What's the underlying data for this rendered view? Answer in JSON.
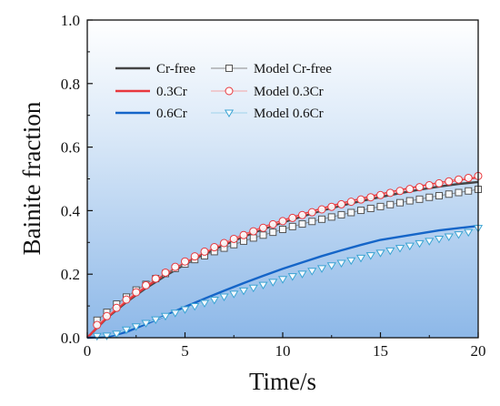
{
  "chart_data": {
    "type": "line",
    "xlabel": "Time/s",
    "ylabel": "Bainite fraction",
    "xlim": [
      0,
      20
    ],
    "ylim": [
      0,
      1.0
    ],
    "x_ticks": [
      "0",
      "5",
      "10",
      "15",
      "20"
    ],
    "y_ticks": [
      "0.0",
      "0.2",
      "0.4",
      "0.6",
      "0.8",
      "1.0"
    ],
    "background": "gradient: light blue (top) to medium blue (bottom)",
    "legend_placement": "top-left",
    "series": [
      {
        "name": "Cr-free",
        "style": "line",
        "color": "#444444",
        "x": [
          0,
          1,
          2,
          3,
          4,
          5,
          6,
          7,
          8,
          9,
          10,
          11,
          12,
          13,
          14,
          15,
          16,
          17,
          18,
          19,
          20
        ],
        "values": [
          0.0,
          0.062,
          0.112,
          0.156,
          0.195,
          0.231,
          0.263,
          0.292,
          0.318,
          0.342,
          0.363,
          0.382,
          0.4,
          0.416,
          0.43,
          0.443,
          0.455,
          0.466,
          0.476,
          0.484,
          0.49
        ]
      },
      {
        "name": "0.3Cr",
        "style": "line",
        "color": "#e8383d",
        "x": [
          0,
          1,
          2,
          3,
          4,
          5,
          6,
          7,
          8,
          9,
          10,
          11,
          12,
          13,
          14,
          15,
          16,
          17,
          18,
          19,
          20
        ],
        "values": [
          0.0,
          0.064,
          0.115,
          0.16,
          0.2,
          0.236,
          0.268,
          0.297,
          0.323,
          0.347,
          0.368,
          0.388,
          0.406,
          0.422,
          0.437,
          0.451,
          0.464,
          0.476,
          0.487,
          0.497,
          0.505
        ]
      },
      {
        "name": "0.6Cr",
        "style": "line",
        "color": "#1565c8",
        "x": [
          0,
          1,
          2,
          3,
          4,
          5,
          6,
          7,
          8,
          9,
          10,
          11,
          12,
          13,
          14,
          15,
          16,
          17,
          18,
          19,
          20
        ],
        "values": [
          0.0,
          0.002,
          0.018,
          0.043,
          0.07,
          0.097,
          0.123,
          0.148,
          0.172,
          0.195,
          0.217,
          0.237,
          0.257,
          0.275,
          0.292,
          0.308,
          0.318,
          0.328,
          0.338,
          0.345,
          0.352
        ]
      },
      {
        "name": "Model Cr-free",
        "style": "line-square",
        "color": "#888888",
        "marker_color": "#555555",
        "x": [
          0.5,
          1.0,
          1.5,
          2.0,
          2.5,
          3.0,
          3.5,
          4.0,
          4.5,
          5.0,
          5.5,
          6.0,
          6.5,
          7.0,
          7.5,
          8.0,
          8.5,
          9.0,
          9.5,
          10.0,
          10.5,
          11.0,
          11.5,
          12.0,
          12.5,
          13.0,
          13.5,
          14.0,
          14.5,
          15.0,
          15.5,
          16.0,
          16.5,
          17.0,
          17.5,
          18.0,
          18.5,
          19.0,
          19.5,
          20.0
        ],
        "values": [
          0.055,
          0.08,
          0.106,
          0.128,
          0.15,
          0.168,
          0.186,
          0.202,
          0.218,
          0.232,
          0.246,
          0.258,
          0.271,
          0.282,
          0.293,
          0.304,
          0.314,
          0.323,
          0.332,
          0.341,
          0.35,
          0.358,
          0.366,
          0.373,
          0.38,
          0.387,
          0.394,
          0.401,
          0.407,
          0.413,
          0.419,
          0.425,
          0.431,
          0.436,
          0.442,
          0.447,
          0.452,
          0.457,
          0.462,
          0.467
        ]
      },
      {
        "name": "Model 0.3Cr",
        "style": "line-circle",
        "color": "#f4a3a3",
        "marker_color": "#e8383d",
        "x": [
          0.5,
          1.0,
          1.5,
          2.0,
          2.5,
          3.0,
          3.5,
          4.0,
          4.5,
          5.0,
          5.5,
          6.0,
          6.5,
          7.0,
          7.5,
          8.0,
          8.5,
          9.0,
          9.5,
          10.0,
          10.5,
          11.0,
          11.5,
          12.0,
          12.5,
          13.0,
          13.5,
          14.0,
          14.5,
          15.0,
          15.5,
          16.0,
          16.5,
          17.0,
          17.5,
          18.0,
          18.5,
          19.0,
          19.5,
          20.0
        ],
        "values": [
          0.04,
          0.068,
          0.094,
          0.12,
          0.143,
          0.165,
          0.186,
          0.205,
          0.223,
          0.24,
          0.256,
          0.271,
          0.285,
          0.298,
          0.311,
          0.323,
          0.335,
          0.346,
          0.357,
          0.367,
          0.377,
          0.386,
          0.395,
          0.404,
          0.412,
          0.42,
          0.428,
          0.435,
          0.442,
          0.449,
          0.456,
          0.462,
          0.468,
          0.474,
          0.48,
          0.486,
          0.492,
          0.498,
          0.503,
          0.509
        ]
      },
      {
        "name": "Model 0.6Cr",
        "style": "line-triangle",
        "color": "#9fd4ea",
        "marker_color": "#3aa3d3",
        "x": [
          0.5,
          1.0,
          1.5,
          2.0,
          2.5,
          3.0,
          3.5,
          4.0,
          4.5,
          5.0,
          5.5,
          6.0,
          6.5,
          7.0,
          7.5,
          8.0,
          8.5,
          9.0,
          9.5,
          10.0,
          10.5,
          11.0,
          11.5,
          12.0,
          12.5,
          13.0,
          13.5,
          14.0,
          14.5,
          15.0,
          15.5,
          16.0,
          16.5,
          17.0,
          17.5,
          18.0,
          18.5,
          19.0,
          19.5,
          20.0
        ],
        "values": [
          0.005,
          0.006,
          0.012,
          0.025,
          0.035,
          0.046,
          0.057,
          0.068,
          0.078,
          0.089,
          0.099,
          0.109,
          0.119,
          0.129,
          0.138,
          0.148,
          0.157,
          0.166,
          0.175,
          0.184,
          0.193,
          0.201,
          0.21,
          0.218,
          0.227,
          0.235,
          0.243,
          0.251,
          0.259,
          0.267,
          0.274,
          0.282,
          0.289,
          0.297,
          0.304,
          0.311,
          0.318,
          0.325,
          0.332,
          0.345
        ]
      }
    ]
  }
}
